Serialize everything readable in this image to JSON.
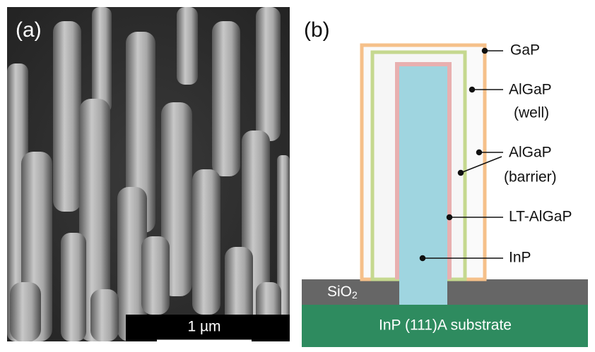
{
  "panel_a": {
    "label": "(a)",
    "scale_bar": "1 µm"
  },
  "panel_b": {
    "label": "(b)",
    "layers": {
      "gap": "GaP",
      "well": [
        "AlGaP",
        "(well)"
      ],
      "barrier": [
        "AlGaP",
        "(barrier)"
      ],
      "lt": "LT-AlGaP",
      "core": "InP"
    },
    "sio2": {
      "text": "SiO",
      "subscript": "2"
    },
    "substrate": "InP (111)A substrate"
  }
}
